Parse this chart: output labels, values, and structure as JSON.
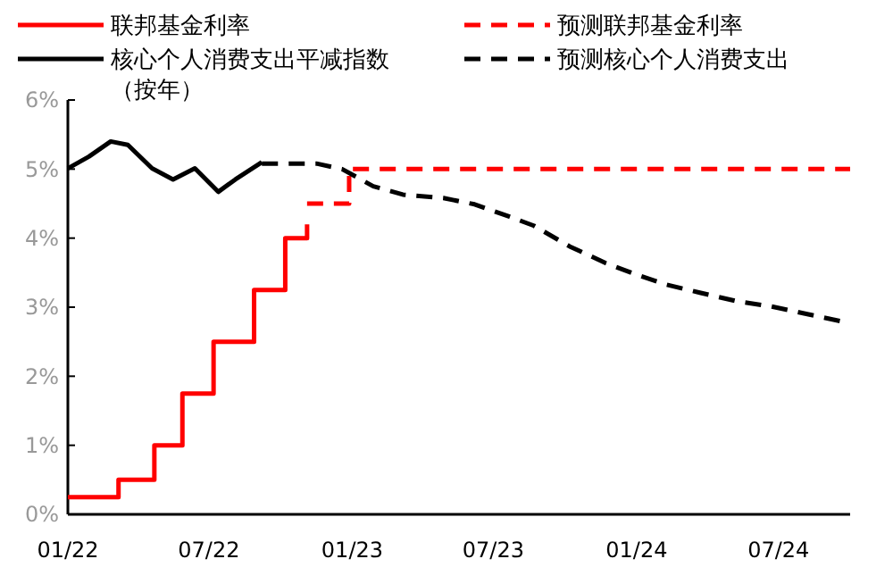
{
  "chart_data": {
    "type": "line",
    "legend": "top",
    "grid": false,
    "xlim": [
      "2022-01",
      "2024-10"
    ],
    "ylim": [
      0,
      6
    ],
    "xticks": [
      {
        "value": "2022-01",
        "label": "01/22"
      },
      {
        "value": "2022-07",
        "label": "07/22"
      },
      {
        "value": "2023-01",
        "label": "01/23"
      },
      {
        "value": "2023-07",
        "label": "07/23"
      },
      {
        "value": "2024-01",
        "label": "01/24"
      },
      {
        "value": "2024-07",
        "label": "07/24"
      }
    ],
    "yticks": [
      {
        "value": 0,
        "label": "0%"
      },
      {
        "value": 1,
        "label": "1%"
      },
      {
        "value": 2,
        "label": "2%"
      },
      {
        "value": 3,
        "label": "3%"
      },
      {
        "value": 4,
        "label": "4%"
      },
      {
        "value": 5,
        "label": "5%"
      },
      {
        "value": 6,
        "label": "6%"
      }
    ],
    "series": [
      {
        "name": "联邦基金利率",
        "type": "step",
        "color": "#ff0000",
        "line_style": "solid",
        "x": [
          "2022-01-01",
          "2022-03-07",
          "2022-04-22",
          "2022-05-28",
          "2022-07-07",
          "2022-08-28",
          "2022-10-07",
          "2022-11-04"
        ],
        "values": [
          0.25,
          0.5,
          1,
          1.75,
          2.5,
          3.25,
          4,
          4.2
        ]
      },
      {
        "name": "预测联邦基金利率",
        "type": "step",
        "color": "#ff0000",
        "line_style": "dashed",
        "x": [
          "2022-11-04",
          "2022-12-28",
          "2024-10-01"
        ],
        "values": [
          4.5,
          5,
          5
        ]
      },
      {
        "name": "核心个人消费支出平减指数（按年）",
        "type": "line",
        "color": "#000000",
        "line_style": "solid",
        "x": [
          "2022-01-01",
          "2022-01-28",
          "2022-02-25",
          "2022-03-19",
          "2022-04-19",
          "2022-05-16",
          "2022-06-13",
          "2022-07-13",
          "2022-08-04",
          "2022-09-07"
        ],
        "values": [
          5.01,
          5.18,
          5.4,
          5.35,
          5.01,
          4.85,
          5.01,
          4.67,
          4.85,
          5.1
        ]
      },
      {
        "name": "预测核心个人消费支出",
        "type": "line",
        "color": "#000000",
        "line_style": "dashed",
        "x": [
          "2022-09-07",
          "2022-11-16",
          "2022-12-19",
          "2023-01-28",
          "2023-03-07",
          "2023-04-28",
          "2023-06-07",
          "2023-07-22",
          "2023-08-22",
          "2023-10-07",
          "2023-11-22",
          "2024-01-01",
          "2024-02-07",
          "2024-03-22",
          "2024-05-07",
          "2024-06-22",
          "2024-08-07",
          "2024-09-22"
        ],
        "values": [
          5.08,
          5.08,
          5,
          4.75,
          4.63,
          4.58,
          4.49,
          4.31,
          4.18,
          3.88,
          3.64,
          3.47,
          3.33,
          3.21,
          3.09,
          3.01,
          2.9,
          2.79
        ]
      }
    ]
  }
}
